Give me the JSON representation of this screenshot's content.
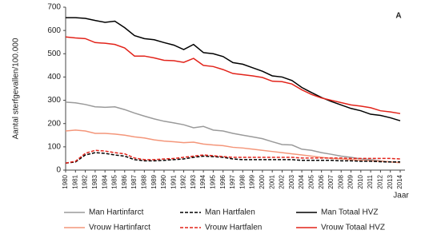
{
  "chart_data": {
    "type": "line",
    "panel_label": "A",
    "y_label": "Aantal sterfgevallen/100.000",
    "x_label": "Jaar",
    "x": [
      1980,
      1981,
      1982,
      1983,
      1984,
      1985,
      1986,
      1987,
      1988,
      1989,
      1990,
      1991,
      1992,
      1993,
      1994,
      1995,
      1996,
      1997,
      1998,
      1999,
      2000,
      2001,
      2002,
      2003,
      2004,
      2005,
      2006,
      2007,
      2008,
      2009,
      2010,
      2011,
      2012,
      2013,
      2014
    ],
    "xlim": [
      1980,
      2014
    ],
    "xticks": [
      1980,
      1981,
      1982,
      1983,
      1984,
      1985,
      1986,
      1987,
      1988,
      1989,
      1990,
      1991,
      1992,
      1993,
      1994,
      1995,
      1996,
      1997,
      1998,
      1999,
      2000,
      2001,
      2002,
      2003,
      2004,
      2005,
      2006,
      2007,
      2008,
      2009,
      2010,
      2011,
      2012,
      2013,
      2014
    ],
    "ylim": [
      0,
      700
    ],
    "yticks": [
      0,
      100,
      200,
      300,
      400,
      500,
      600,
      700
    ],
    "grid": false,
    "series": [
      {
        "name": "Man Hartinfarct",
        "color": "#9a9a9a",
        "dashed": false,
        "values": [
          292,
          289,
          282,
          272,
          270,
          272,
          260,
          245,
          232,
          220,
          210,
          203,
          195,
          182,
          188,
          172,
          168,
          158,
          150,
          143,
          135,
          122,
          110,
          108,
          90,
          85,
          75,
          68,
          60,
          55,
          48,
          45,
          40,
          35,
          32
        ]
      },
      {
        "name": "Vrouw Hartinfarct",
        "color": "#f4967a",
        "dashed": false,
        "values": [
          168,
          172,
          168,
          158,
          158,
          155,
          150,
          143,
          138,
          130,
          125,
          122,
          118,
          120,
          112,
          108,
          105,
          98,
          95,
          90,
          85,
          80,
          75,
          70,
          65,
          60,
          55,
          50,
          48,
          45,
          42,
          40,
          38,
          35,
          32
        ]
      },
      {
        "name": "Man Hartfalen",
        "color": "#000000",
        "dashed": true,
        "values": [
          30,
          35,
          65,
          75,
          72,
          65,
          60,
          45,
          40,
          40,
          42,
          45,
          48,
          55,
          60,
          58,
          55,
          48,
          45,
          45,
          45,
          45,
          45,
          45,
          42,
          42,
          42,
          42,
          40,
          40,
          38,
          38,
          36,
          35,
          35
        ]
      },
      {
        "name": "Vrouw Hartfalen",
        "color": "#e2231a",
        "dashed": true,
        "values": [
          30,
          38,
          72,
          85,
          82,
          75,
          70,
          52,
          45,
          45,
          48,
          50,
          55,
          60,
          65,
          62,
          58,
          55,
          55,
          55,
          55,
          55,
          55,
          55,
          52,
          52,
          52,
          52,
          52,
          50,
          50,
          50,
          50,
          50,
          48
        ]
      },
      {
        "name": "Man Totaal HVZ",
        "color": "#000000",
        "dashed": false,
        "values": [
          655,
          655,
          652,
          643,
          635,
          640,
          612,
          578,
          565,
          560,
          548,
          537,
          518,
          540,
          505,
          500,
          488,
          462,
          455,
          440,
          425,
          405,
          400,
          385,
          355,
          333,
          312,
          295,
          280,
          265,
          255,
          240,
          235,
          225,
          212
        ]
      },
      {
        "name": "Vrouw Totaal HVZ",
        "color": "#e2231a",
        "dashed": false,
        "values": [
          572,
          568,
          565,
          548,
          545,
          540,
          525,
          490,
          490,
          482,
          472,
          470,
          463,
          480,
          450,
          445,
          432,
          415,
          410,
          405,
          398,
          382,
          380,
          370,
          345,
          325,
          310,
          300,
          290,
          280,
          275,
          268,
          255,
          250,
          243
        ]
      }
    ]
  }
}
